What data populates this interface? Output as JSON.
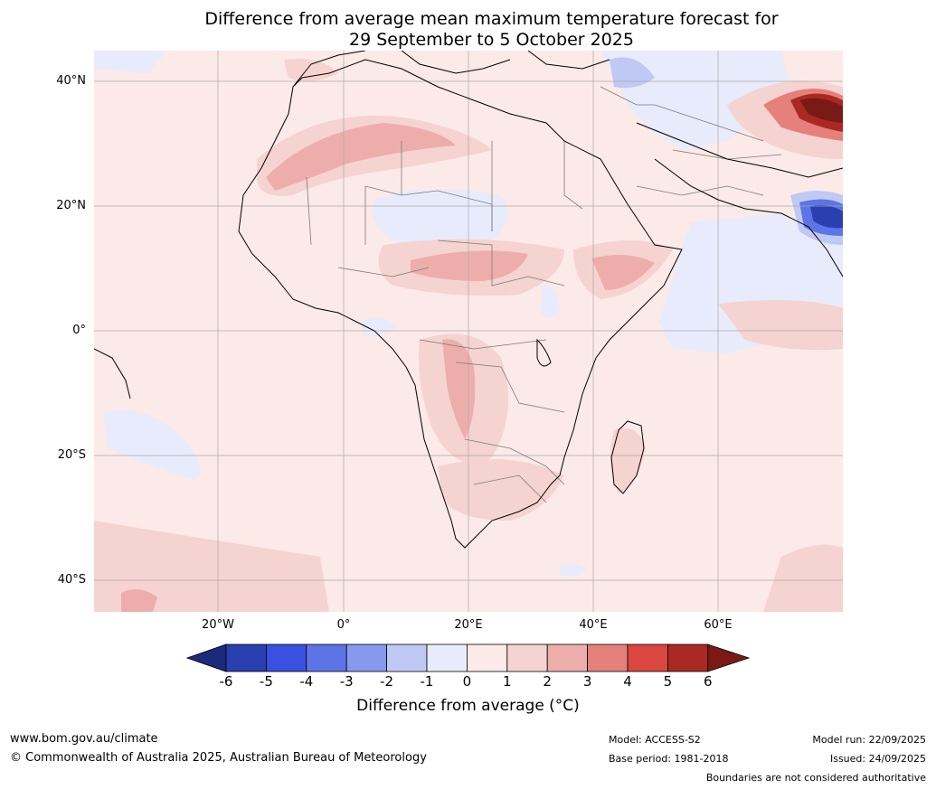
{
  "title": {
    "line1": "Difference from average mean maximum temperature forecast for",
    "line2": "29 September to 5 October 2025"
  },
  "map": {
    "lat_labels": [
      "40°N",
      "20°N",
      "0°",
      "20°S",
      "40°S"
    ],
    "lon_labels": [
      "20°W",
      "0°",
      "20°E",
      "40°E",
      "60°E"
    ]
  },
  "colorbar": {
    "ticks": [
      "-6",
      "-5",
      "-4",
      "-3",
      "-2",
      "-1",
      "0",
      "1",
      "2",
      "3",
      "4",
      "5",
      "6"
    ],
    "label": "Difference from average (°C)",
    "colors": [
      "#1b2a7a",
      "#2a3fb0",
      "#3950e0",
      "#5c74e6",
      "#8799ec",
      "#c0c9f4",
      "#e8ebfb",
      "#fbeae8",
      "#f5d3d1",
      "#edaeab",
      "#e6807a",
      "#d9473e",
      "#aa2a23",
      "#7a1a15"
    ]
  },
  "footer": {
    "url": "www.bom.gov.au/climate",
    "copyright": "© Commonwealth of Australia 2025, Australian Bureau of Meteorology",
    "model": "Model: ACCESS-S2",
    "base_period": "Base period: 1981-2018",
    "model_run": "Model run: 22/09/2025",
    "issued": "Issued: 24/09/2025",
    "disclaimer": "Boundaries are not considered authoritative"
  }
}
